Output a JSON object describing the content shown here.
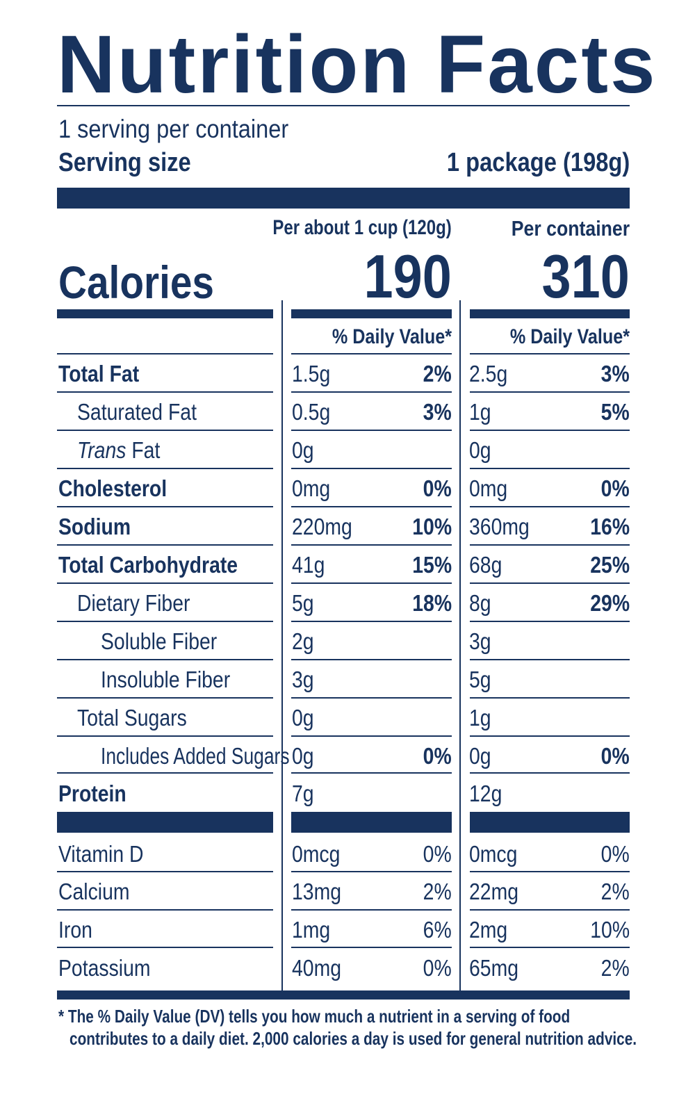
{
  "label": {
    "title": "Nutrition Facts",
    "servings_per_container": "1 serving per container",
    "serving_size_label": "Serving size",
    "serving_size_value": "1 package (198g)",
    "col1_header": "Per about 1 cup (120g)",
    "col2_header": "Per container",
    "calories_label": "Calories",
    "calories_col1": "190",
    "calories_col2": "310",
    "dv_header": "% Daily Value*",
    "footnote_line1": "* The % Daily Value (DV) tells you how much a nutrient in a serving of food",
    "footnote_line2": "contributes to a daily diet. 2,000 calories a day is used for general nutrition advice."
  },
  "nutrients": [
    {
      "name": "Total Fat",
      "c1_amount": "1.5g",
      "c1_dv": "2%",
      "c2_amount": "2.5g",
      "c2_dv": "3%"
    },
    {
      "name": "Saturated Fat",
      "c1_amount": "0.5g",
      "c1_dv": "3%",
      "c2_amount": "1g",
      "c2_dv": "5%"
    },
    {
      "name_italic": "Trans",
      "name_rest": " Fat",
      "c1_amount": "0g",
      "c1_dv": "",
      "c2_amount": "0g",
      "c2_dv": ""
    },
    {
      "name": "Cholesterol",
      "c1_amount": "0mg",
      "c1_dv": "0%",
      "c2_amount": "0mg",
      "c2_dv": "0%"
    },
    {
      "name": "Sodium",
      "c1_amount": "220mg",
      "c1_dv": "10%",
      "c2_amount": "360mg",
      "c2_dv": "16%"
    },
    {
      "name": "Total Carbohydrate",
      "c1_amount": "41g",
      "c1_dv": "15%",
      "c2_amount": "68g",
      "c2_dv": "25%"
    },
    {
      "name": "Dietary Fiber",
      "c1_amount": "5g",
      "c1_dv": "18%",
      "c2_amount": "8g",
      "c2_dv": "29%"
    },
    {
      "name": "Soluble Fiber",
      "c1_amount": "2g",
      "c1_dv": "",
      "c2_amount": "3g",
      "c2_dv": ""
    },
    {
      "name": "Insoluble Fiber",
      "c1_amount": "3g",
      "c1_dv": "",
      "c2_amount": "5g",
      "c2_dv": ""
    },
    {
      "name": "Total Sugars",
      "c1_amount": "0g",
      "c1_dv": "",
      "c2_amount": "1g",
      "c2_dv": ""
    },
    {
      "name": "Includes Added Sugars",
      "c1_amount": "0g",
      "c1_dv": "0%",
      "c2_amount": "0g",
      "c2_dv": "0%"
    },
    {
      "name": "Protein",
      "c1_amount": "7g",
      "c1_dv": "",
      "c2_amount": "12g",
      "c2_dv": ""
    }
  ],
  "vitamins": [
    {
      "name": "Vitamin D",
      "c1_amount": "0mcg",
      "c1_dv": "0%",
      "c2_amount": "0mcg",
      "c2_dv": "0%"
    },
    {
      "name": "Calcium",
      "c1_amount": "13mg",
      "c1_dv": "2%",
      "c2_amount": "22mg",
      "c2_dv": "2%"
    },
    {
      "name": "Iron",
      "c1_amount": "1mg",
      "c1_dv": "6%",
      "c2_amount": "2mg",
      "c2_dv": "10%"
    },
    {
      "name": "Potassium",
      "c1_amount": "40mg",
      "c1_dv": "0%",
      "c2_amount": "65mg",
      "c2_dv": "2%"
    }
  ],
  "colors": {
    "ink": "#18335e",
    "background": "#ffffff"
  }
}
